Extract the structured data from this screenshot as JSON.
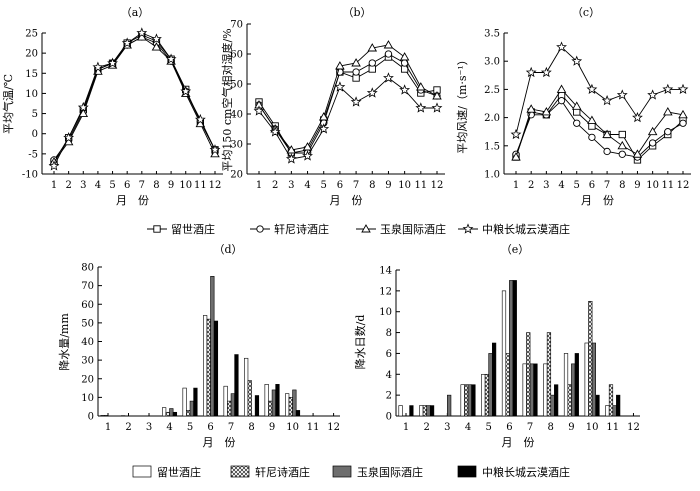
{
  "series_names": [
    "留世酒庄",
    "轩尼诗酒庄",
    "玉泉国际酒庄",
    "中粮长城云漠酒庄"
  ],
  "month_label": "月　份",
  "chart_data": [
    {
      "id": "a",
      "type": "line",
      "title": "（a）",
      "ylabel": "平均气温/℃",
      "x": [
        1,
        2,
        3,
        4,
        5,
        6,
        7,
        8,
        9,
        10,
        11,
        12
      ],
      "ylim": [
        -10,
        25
      ],
      "yticks": [
        -10,
        -5,
        0,
        5,
        10,
        15,
        20,
        25
      ],
      "series": [
        {
          "name": "留世酒庄",
          "values": [
            -7,
            -1,
            6,
            16,
            17.5,
            22.5,
            24.5,
            23,
            18.5,
            11,
            3,
            -4
          ]
        },
        {
          "name": "轩尼诗酒庄",
          "values": [
            -6.5,
            -1.5,
            5.5,
            16,
            17.5,
            22,
            24,
            22.5,
            18,
            10.5,
            3,
            -4
          ]
        },
        {
          "name": "玉泉国际酒庄",
          "values": [
            -7,
            -2,
            5,
            15.5,
            17,
            22,
            24,
            21.5,
            18,
            10,
            2.5,
            -5
          ]
        },
        {
          "name": "中粮长城云漠酒庄",
          "values": [
            -8,
            -1,
            6.5,
            16.5,
            17.5,
            22.5,
            25,
            23.5,
            18.5,
            10.5,
            3.5,
            -4
          ]
        }
      ]
    },
    {
      "id": "b",
      "type": "line",
      "title": "（b）",
      "ylabel": "平均150 cm空气相对湿度/%",
      "x": [
        1,
        2,
        3,
        4,
        5,
        6,
        7,
        8,
        9,
        10,
        11,
        12
      ],
      "ylim": [
        20,
        70
      ],
      "yticks": [
        20,
        30,
        40,
        50,
        60,
        70
      ],
      "series": [
        {
          "name": "留世酒庄",
          "values": [
            44,
            36,
            27,
            28,
            38,
            54,
            52,
            55,
            59,
            55,
            47,
            48
          ]
        },
        {
          "name": "轩尼诗酒庄",
          "values": [
            43,
            35,
            27,
            27,
            37,
            54,
            54,
            57,
            60,
            57,
            48,
            46
          ]
        },
        {
          "name": "玉泉国际酒庄",
          "values": [
            43,
            35,
            28,
            29,
            39,
            56,
            57,
            62,
            63,
            59,
            49,
            46
          ]
        },
        {
          "name": "中粮长城云漠酒庄",
          "values": [
            41,
            34,
            25,
            26,
            35,
            49,
            44,
            47,
            52,
            48,
            42,
            42
          ]
        }
      ]
    },
    {
      "id": "c",
      "type": "line",
      "title": "（c）",
      "ylabel": "平均风速/（m·s⁻¹）",
      "x": [
        1,
        2,
        3,
        4,
        5,
        6,
        7,
        8,
        9,
        10,
        11,
        12
      ],
      "ylim": [
        1.0,
        3.5
      ],
      "yticks": [
        1.0,
        1.5,
        2.0,
        2.5,
        3.0,
        3.5
      ],
      "series": [
        {
          "name": "留世酒庄",
          "values": [
            1.3,
            2.1,
            2.05,
            2.4,
            2.1,
            1.85,
            1.7,
            1.7,
            1.25,
            1.5,
            1.7,
            1.95
          ]
        },
        {
          "name": "轩尼诗酒庄",
          "values": [
            1.35,
            2.05,
            2.05,
            2.3,
            1.9,
            1.65,
            1.4,
            1.35,
            1.3,
            1.55,
            1.75,
            1.9
          ]
        },
        {
          "name": "玉泉国际酒庄",
          "values": [
            1.3,
            2.15,
            2.1,
            2.5,
            2.2,
            1.95,
            1.7,
            1.5,
            1.35,
            1.75,
            2.1,
            2.05
          ]
        },
        {
          "name": "中粮长城云漠酒庄",
          "values": [
            1.7,
            2.8,
            2.8,
            3.25,
            3.0,
            2.5,
            2.3,
            2.4,
            2.0,
            2.4,
            2.5,
            2.5
          ]
        }
      ]
    },
    {
      "id": "d",
      "type": "bar",
      "title": "（d）",
      "ylabel": "降水量/mm",
      "categories": [
        "1",
        "2",
        "3",
        "4",
        "5",
        "6",
        "7",
        "8",
        "9",
        "10",
        "11",
        "12"
      ],
      "ylim": [
        0,
        80
      ],
      "yticks": [
        0,
        10,
        20,
        30,
        40,
        50,
        60,
        70,
        80
      ],
      "series": [
        {
          "name": "留世酒庄",
          "values": [
            0.3,
            0.2,
            0,
            4.5,
            15,
            54,
            16,
            31,
            17,
            12,
            0,
            0
          ]
        },
        {
          "name": "轩尼诗酒庄",
          "values": [
            0.3,
            0,
            0,
            2,
            3,
            52,
            8,
            19,
            8,
            10,
            0,
            0
          ]
        },
        {
          "name": "玉泉国际酒庄",
          "values": [
            0,
            0,
            0,
            4,
            8,
            75,
            12,
            0,
            14,
            14,
            0,
            0
          ]
        },
        {
          "name": "中粮长城云漠酒庄",
          "values": [
            0,
            0,
            0,
            2,
            15,
            51,
            33,
            11,
            17,
            3,
            0,
            0
          ]
        }
      ]
    },
    {
      "id": "e",
      "type": "bar",
      "title": "（e）",
      "ylabel": "降水日数/d",
      "categories": [
        "1",
        "2",
        "3",
        "4",
        "5",
        "6",
        "7",
        "8",
        "9",
        "10",
        "11",
        "12"
      ],
      "ylim": [
        0,
        14
      ],
      "yticks": [
        0,
        2,
        4,
        6,
        8,
        10,
        12,
        14
      ],
      "series": [
        {
          "name": "留世酒庄",
          "values": [
            1,
            1,
            0,
            3,
            4,
            12,
            5,
            5,
            6,
            7,
            1,
            0
          ]
        },
        {
          "name": "轩尼诗酒庄",
          "values": [
            0,
            1,
            0,
            3,
            4,
            6,
            8,
            8,
            3,
            11,
            3,
            0
          ]
        },
        {
          "name": "玉泉国际酒庄",
          "values": [
            0,
            1,
            2,
            3,
            6,
            13,
            5,
            2,
            5,
            7,
            1,
            0
          ]
        },
        {
          "name": "中粮长城云漠酒庄",
          "values": [
            1,
            1,
            0,
            3,
            7,
            13,
            5,
            3,
            6,
            2,
            2,
            0
          ]
        }
      ]
    }
  ]
}
